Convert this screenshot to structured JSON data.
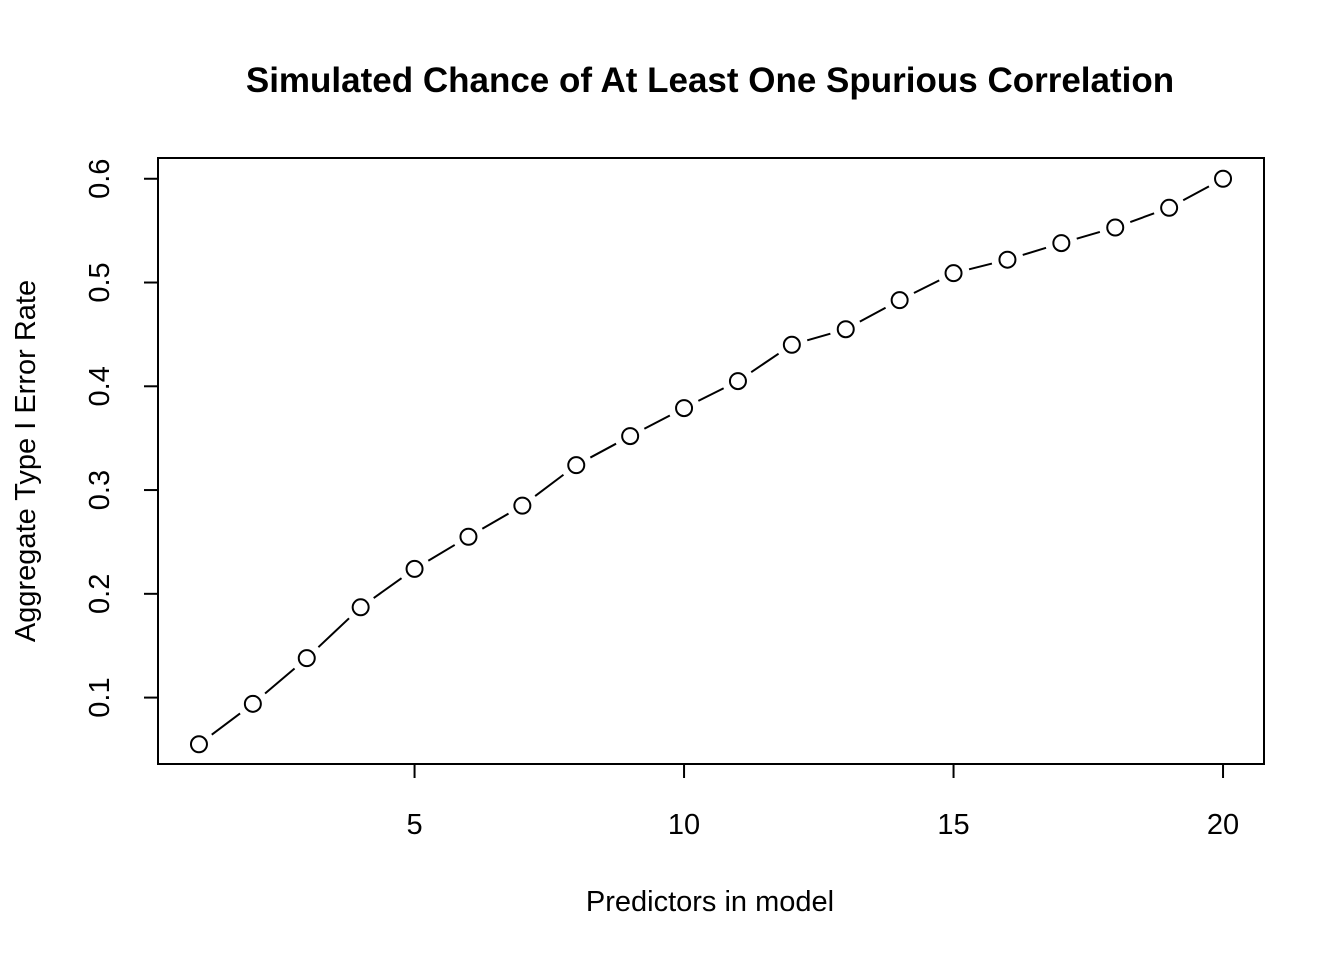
{
  "chart_data": {
    "type": "line",
    "title": "Simulated Chance of At Least One Spurious Correlation",
    "xlabel": "Predictors in model",
    "ylabel": "Aggregate Type I Error Rate",
    "xlim": [
      0.24,
      20.76
    ],
    "ylim": [
      0.036,
      0.62
    ],
    "x_ticks": [
      5,
      10,
      15,
      20
    ],
    "x_tick_labels": [
      "5",
      "10",
      "15",
      "20"
    ],
    "y_ticks": [
      0.1,
      0.2,
      0.3,
      0.4,
      0.5,
      0.6
    ],
    "y_tick_labels": [
      "0.1",
      "0.2",
      "0.3",
      "0.4",
      "0.5",
      "0.6"
    ],
    "marker": "open-circle",
    "line_style": "solid-with-gaps-at-points",
    "grid": false,
    "legend": "none",
    "colors": {
      "line": "#000000",
      "marker_stroke": "#000000",
      "marker_fill": "#ffffff",
      "background": "#ffffff"
    },
    "series": [
      {
        "x": [
          1,
          2,
          3,
          4,
          5,
          6,
          7,
          8,
          9,
          10,
          11,
          12,
          13,
          14,
          15,
          16,
          17,
          18,
          19,
          20
        ],
        "values": [
          0.055,
          0.094,
          0.138,
          0.187,
          0.224,
          0.255,
          0.285,
          0.324,
          0.352,
          0.379,
          0.405,
          0.44,
          0.455,
          0.483,
          0.509,
          0.522,
          0.538,
          0.553,
          0.572,
          0.6
        ]
      }
    ]
  }
}
